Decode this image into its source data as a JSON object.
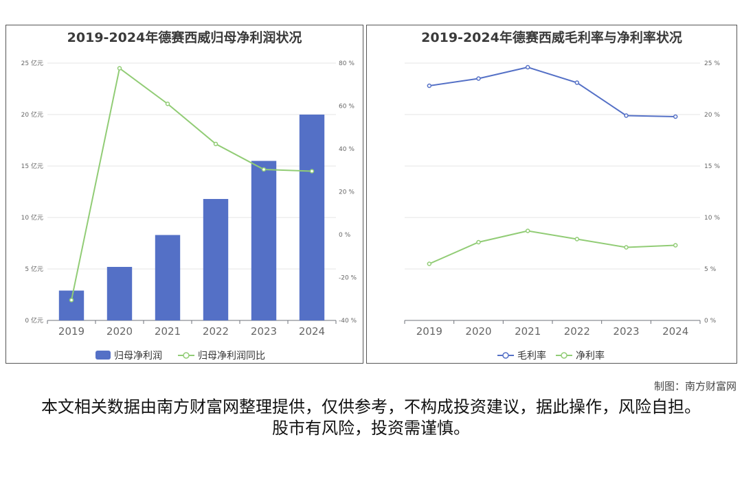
{
  "charts": {
    "left": {
      "title": "2019-2024年德赛西威归母净利润状况"
    },
    "right": {
      "title": "2019-2024年德赛西威毛利率与净利率状况"
    }
  },
  "chart_data": [
    {
      "type": "bar",
      "title": "2019-2024年德赛西威归母净利润状况",
      "categories": [
        "2019",
        "2020",
        "2021",
        "2022",
        "2023",
        "2024"
      ],
      "y_ticks_left": [
        "0 亿元",
        "5 亿元",
        "10 亿元",
        "15 亿元",
        "20 亿元",
        "25 亿元"
      ],
      "y_ticks_right": [
        "-40 %",
        "-20 %",
        "0 %",
        "20 %",
        "40 %",
        "60 %",
        "80 %"
      ],
      "ylim_left": [
        0,
        25
      ],
      "ylim_right": [
        -40,
        80
      ],
      "series": [
        {
          "name": "归母净利润",
          "type": "bar",
          "axis": "left",
          "color": "#5470c6",
          "values": [
            2.9,
            5.2,
            8.3,
            11.8,
            15.5,
            20.0
          ]
        },
        {
          "name": "归母净利润同比",
          "type": "line",
          "axis": "right",
          "color": "#91cc75",
          "values": [
            -30.5,
            77.6,
            61.0,
            42.3,
            30.4,
            29.6
          ]
        }
      ],
      "grid": true,
      "legend": "bottom"
    },
    {
      "type": "line",
      "title": "2019-2024年德赛西威毛利率与净利率状况",
      "categories": [
        "2019",
        "2020",
        "2021",
        "2022",
        "2023",
        "2024"
      ],
      "y_ticks_right": [
        "0 %",
        "5 %",
        "10 %",
        "15 %",
        "20 %",
        "25 %"
      ],
      "ylim": [
        0,
        25
      ],
      "series": [
        {
          "name": "毛利率",
          "color": "#5470c6",
          "values": [
            22.8,
            23.5,
            24.6,
            23.1,
            19.9,
            19.8
          ]
        },
        {
          "name": "净利率",
          "color": "#91cc75",
          "values": [
            5.5,
            7.6,
            8.7,
            7.9,
            7.1,
            7.3
          ]
        }
      ],
      "grid": true,
      "legend": "bottom"
    }
  ],
  "credit": "制图：南方财富网",
  "disclaimer": "本文相关数据由南方财富网整理提供，仅供参考，不构成投资建议，据此操作，风险自担。股市有风险，投资需谨慎。"
}
